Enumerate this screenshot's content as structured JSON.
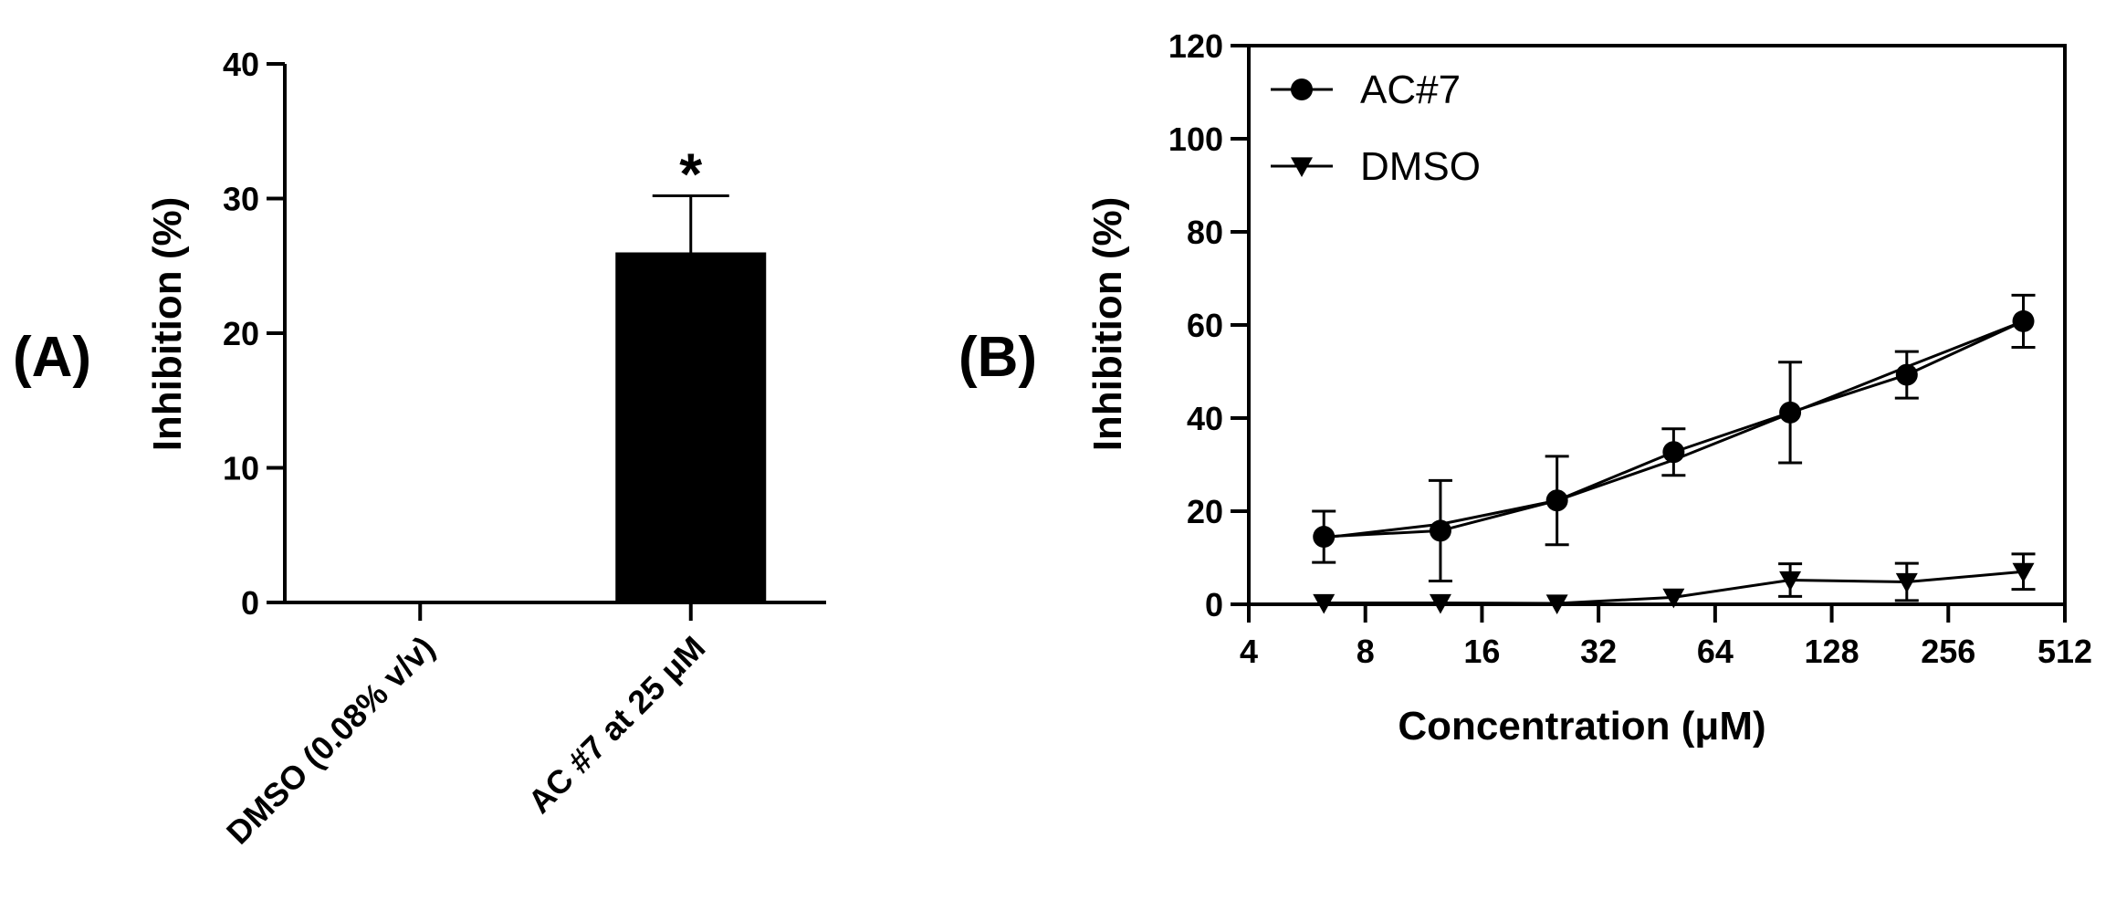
{
  "colors": {
    "ink": "#000000",
    "background": "#ffffff"
  },
  "chart_data": [
    {
      "panel_label": "(A)",
      "type": "bar",
      "ylabel": "Inhibition (%)",
      "xlabel": "",
      "ylim": [
        0,
        40
      ],
      "yticks": [
        0,
        10,
        20,
        30,
        40
      ],
      "categories": [
        "DMSO (0.08% v/v)",
        "AC #7 at 25 μM"
      ],
      "values": [
        0,
        26
      ],
      "errors": [
        0,
        4.2
      ],
      "annotations": [
        {
          "category": "AC #7 at 25 μM",
          "text": "*"
        }
      ]
    },
    {
      "panel_label": "(B)",
      "type": "line",
      "xscale": "log2",
      "xlabel": "Concentration (μM)",
      "ylabel": "Inhibition (%)",
      "xlim": [
        4,
        512
      ],
      "ylim": [
        0,
        120
      ],
      "xticks": [
        4,
        8,
        16,
        32,
        64,
        128,
        256,
        512
      ],
      "yticks": [
        0,
        20,
        40,
        60,
        80,
        100,
        120
      ],
      "legend_position": "top-left",
      "series": [
        {
          "name": "AC#7",
          "marker": "circle",
          "x": [
            6.25,
            12.5,
            25,
            50,
            100,
            200,
            400
          ],
          "y": [
            14.5,
            15.8,
            22.3,
            32.7,
            41.2,
            49.3,
            60.8
          ],
          "errors": [
            5.5,
            10.8,
            9.5,
            5.0,
            10.8,
            5.0,
            5.6
          ],
          "fit": [
            14.3,
            17.2,
            22.3,
            31.0,
            41.0,
            51.0,
            60.8
          ]
        },
        {
          "name": "DMSO",
          "marker": "triangle-down",
          "x": [
            6.25,
            12.5,
            25,
            50,
            100,
            200,
            400
          ],
          "y": [
            0.3,
            0.3,
            0.2,
            1.5,
            5.2,
            4.8,
            7.0
          ],
          "errors": [
            0,
            0,
            0,
            0,
            3.5,
            4.0,
            3.8
          ]
        }
      ]
    }
  ]
}
